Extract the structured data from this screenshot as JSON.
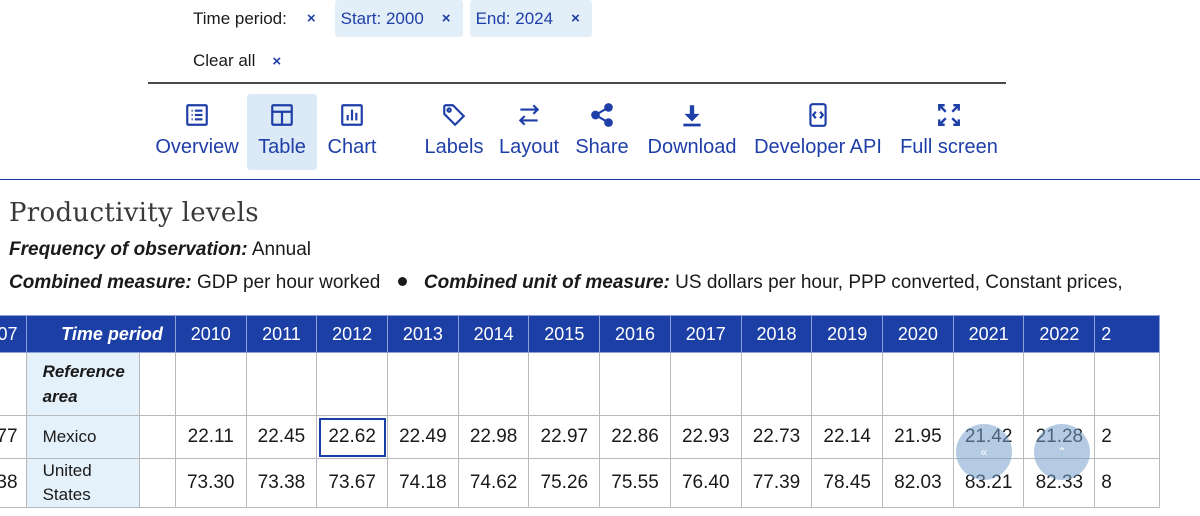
{
  "filters": {
    "time_period_label": "Time period:",
    "chips": [
      {
        "label": "Start: 2000"
      },
      {
        "label": "End: 2024"
      }
    ],
    "clear_all": "Clear all",
    "remove_icon": "×"
  },
  "toolbar": [
    {
      "label": "Overview",
      "icon": "list-icon"
    },
    {
      "label": "Table",
      "icon": "table-icon",
      "active": true
    },
    {
      "label": "Chart",
      "icon": "chart-icon"
    },
    {
      "label": "Labels",
      "icon": "tag-icon"
    },
    {
      "label": "Layout",
      "icon": "swap-icon"
    },
    {
      "label": "Share",
      "icon": "share-icon"
    },
    {
      "label": "Download",
      "icon": "download-icon"
    },
    {
      "label": "Developer API",
      "icon": "api-icon"
    },
    {
      "label": "Full screen",
      "icon": "fullscreen-icon"
    }
  ],
  "heading": {
    "title": "Productivity levels",
    "frequency_label": "Frequency of observation:",
    "frequency_value": "Annual",
    "measure_label": "Combined measure:",
    "measure_value": "GDP per hour worked",
    "unit_label": "Combined unit of measure:",
    "unit_value": "US dollars per hour, PPP converted, Constant prices,"
  },
  "table": {
    "time_period_header": "Time period",
    "ref_area_header": "Reference area",
    "prev_year_partial": "07",
    "years": [
      "2010",
      "2011",
      "2012",
      "2013",
      "2014",
      "2015",
      "2016",
      "2017",
      "2018",
      "2019",
      "2020",
      "2021",
      "2022",
      "2"
    ],
    "rows": [
      {
        "area": "Mexico",
        "prev": "77",
        "values": [
          "22.11",
          "22.45",
          "22.62",
          "22.49",
          "22.98",
          "22.97",
          "22.86",
          "22.93",
          "22.73",
          "22.14",
          "21.95",
          "21.42",
          "21.28",
          "2"
        ]
      },
      {
        "area": "United States",
        "prev": "38",
        "values": [
          "73.30",
          "73.38",
          "73.67",
          "74.18",
          "74.62",
          "75.26",
          "75.55",
          "76.40",
          "77.39",
          "78.45",
          "82.03",
          "83.21",
          "82.33",
          "8"
        ]
      }
    ]
  },
  "scroll_controls": {
    "left_glyph": "«",
    "up_glyph": "⌃"
  },
  "colors": {
    "accent": "#1f3fa8",
    "header_bg": "#1c3fa6",
    "chip_bg": "#e2eef8",
    "side_bg": "#e4f0fa"
  }
}
